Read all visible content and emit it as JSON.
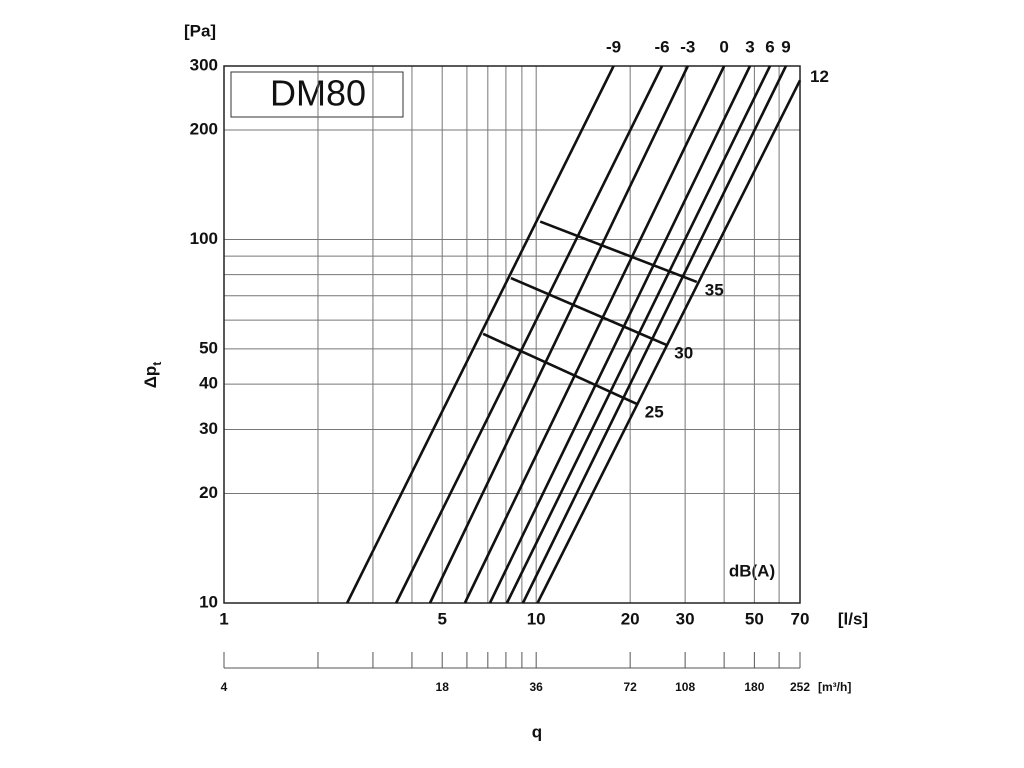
{
  "chart_data": {
    "type": "line",
    "title": "DM80",
    "ylabel": "Δp",
    "ylabel_sub": "t",
    "yunit": "[Pa]",
    "xunit": "[l/s]",
    "x2unit": "[m³/h]",
    "xlabel": "q",
    "annotation": "dB(A)",
    "log_x": true,
    "log_y": true,
    "xlim": [
      1,
      70
    ],
    "ylim": [
      10,
      300
    ],
    "xticks": [
      1,
      5,
      10,
      20,
      30,
      50,
      70
    ],
    "xgrid": [
      2,
      3,
      4,
      6,
      7,
      8,
      9,
      40,
      60
    ],
    "yticks": [
      10,
      20,
      30,
      40,
      50,
      100,
      200,
      300
    ],
    "ygrid": [
      60,
      70,
      80,
      90
    ],
    "x2lim": [
      3.6,
      252
    ],
    "x2ticks": [
      {
        "value": 3.6,
        "label": "4"
      },
      18,
      36,
      72,
      108,
      180,
      252
    ],
    "x2minor": [
      7.2,
      10.8,
      14.4,
      21.6,
      25.2,
      28.8,
      32.4,
      144,
      216
    ],
    "series": [
      {
        "name": "-9",
        "color": "#111111",
        "x": [
          2.48,
          17.7
        ],
        "values": [
          10,
          300
        ]
      },
      {
        "name": "-6",
        "color": "#111111",
        "x": [
          3.56,
          25.3
        ],
        "values": [
          10,
          300
        ]
      },
      {
        "name": "-3",
        "color": "#111111",
        "x": [
          4.57,
          30.6
        ],
        "values": [
          10,
          300
        ]
      },
      {
        "name": "0",
        "color": "#111111",
        "x": [
          5.91,
          40.0
        ],
        "values": [
          10,
          300
        ]
      },
      {
        "name": "3",
        "color": "#111111",
        "x": [
          7.11,
          48.4
        ],
        "values": [
          10,
          300
        ]
      },
      {
        "name": "6",
        "color": "#111111",
        "x": [
          8.06,
          56.1
        ],
        "values": [
          10,
          300
        ]
      },
      {
        "name": "9",
        "color": "#111111",
        "x": [
          9.07,
          63.1
        ],
        "values": [
          10,
          300
        ]
      },
      {
        "name": "12",
        "color": "#111111",
        "x": [
          10.1,
          70
        ],
        "values": [
          10,
          274
        ]
      }
    ],
    "dba_lines": [
      {
        "name": "35",
        "color": "#111111",
        "x": [
          10.3,
          32.7
        ],
        "values": [
          112,
          76.4
        ]
      },
      {
        "name": "30",
        "color": "#111111",
        "x": [
          8.3,
          26.1
        ],
        "values": [
          78.3,
          51.3
        ]
      },
      {
        "name": "25",
        "color": "#111111",
        "x": [
          6.76,
          21.0
        ],
        "values": [
          55.0,
          35.3
        ]
      }
    ]
  }
}
